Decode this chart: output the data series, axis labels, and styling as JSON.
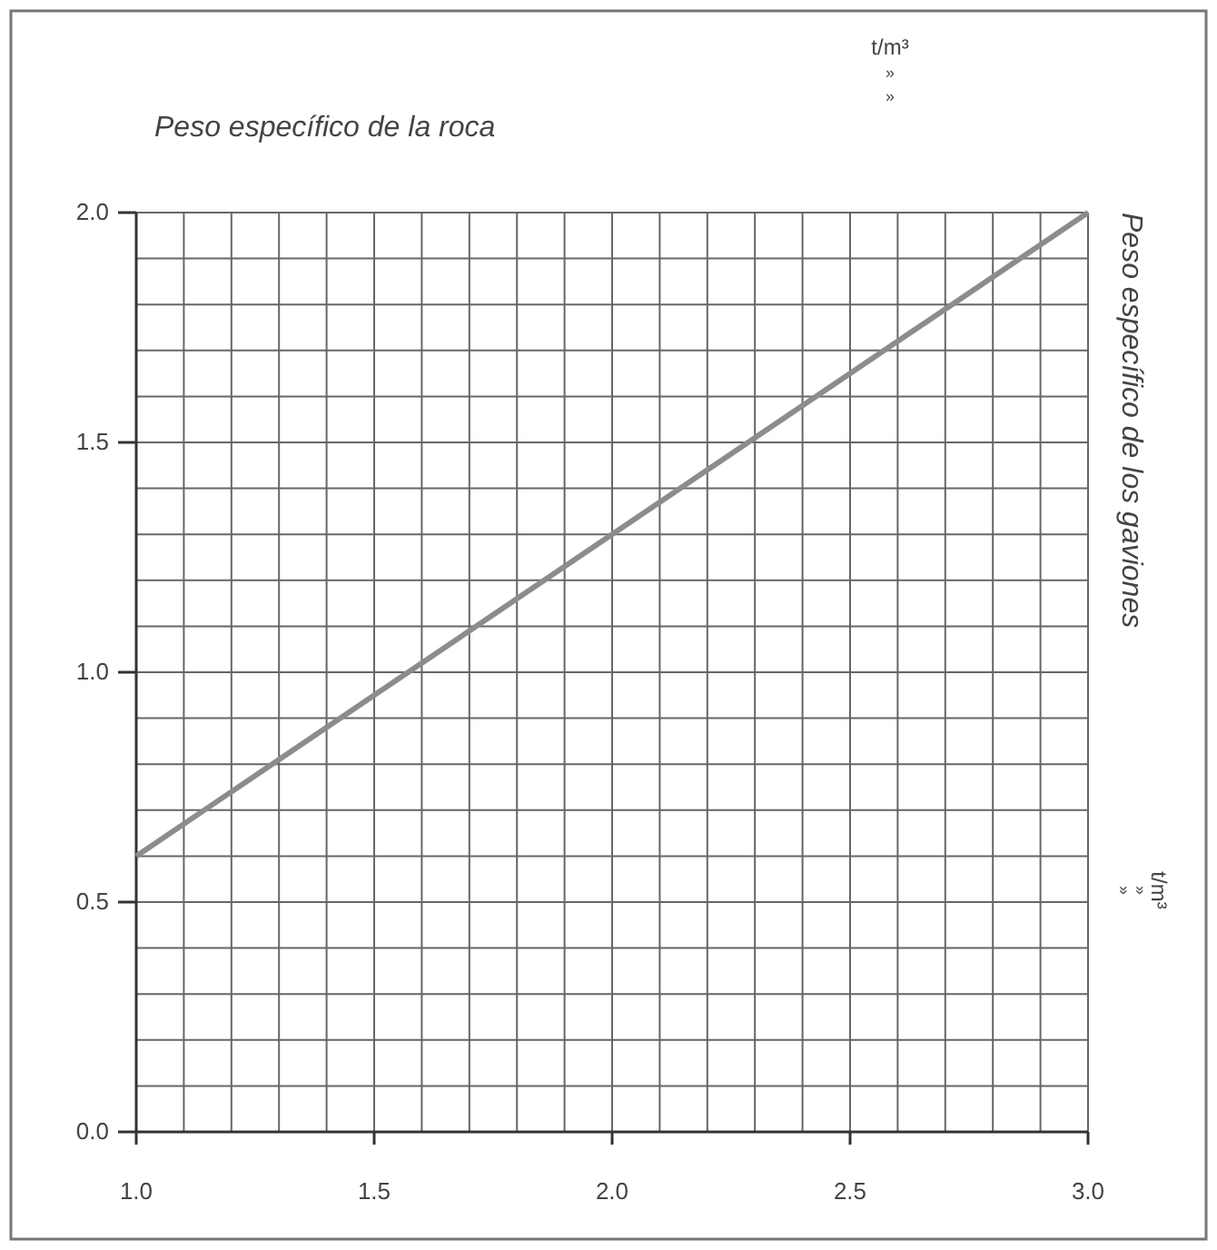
{
  "chart_data": {
    "type": "line",
    "title": "Peso específico de la roca",
    "ylabel": "Peso específico de los gaviones",
    "annotations": [
      "t/m³",
      "»",
      "»",
      "t/m³",
      "»",
      "»"
    ],
    "x": [
      1.0,
      3.0
    ],
    "series": [
      {
        "color": "#8c8c8c",
        "values": [
          0.6,
          2.0
        ]
      }
    ],
    "xlim": [
      1.0,
      3.0
    ],
    "ylim": [
      0.0,
      2.0
    ],
    "xticks": [
      {
        "value": 1.0,
        "label": "1.0"
      },
      {
        "value": 1.1,
        "label": null
      },
      {
        "value": 1.2,
        "label": null
      },
      {
        "value": 1.3,
        "label": null
      },
      {
        "value": 1.4,
        "label": null
      },
      {
        "value": 1.5,
        "label": "1.5"
      },
      {
        "value": 1.6,
        "label": null
      },
      {
        "value": 1.7,
        "label": null
      },
      {
        "value": 1.8,
        "label": null
      },
      {
        "value": 1.9,
        "label": null
      },
      {
        "value": 2.0,
        "label": "2.0"
      },
      {
        "value": 2.1,
        "label": null
      },
      {
        "value": 2.2,
        "label": null
      },
      {
        "value": 2.3,
        "label": null
      },
      {
        "value": 2.4,
        "label": null
      },
      {
        "value": 2.5,
        "label": "2.5"
      },
      {
        "value": 2.6,
        "label": null
      },
      {
        "value": 2.7,
        "label": null
      },
      {
        "value": 2.8,
        "label": null
      },
      {
        "value": 2.9,
        "label": null
      },
      {
        "value": 3.0,
        "label": "3.0"
      }
    ],
    "yticks": [
      {
        "value": 0.0,
        "label": "0.0"
      },
      {
        "value": 0.1,
        "label": null
      },
      {
        "value": 0.2,
        "label": null
      },
      {
        "value": 0.3,
        "label": null
      },
      {
        "value": 0.4,
        "label": null
      },
      {
        "value": 0.5,
        "label": "0.5"
      },
      {
        "value": 0.6,
        "label": null
      },
      {
        "value": 0.7,
        "label": null
      },
      {
        "value": 0.8,
        "label": null
      },
      {
        "value": 0.9,
        "label": null
      },
      {
        "value": 1.0,
        "label": "1.0"
      },
      {
        "value": 1.1,
        "label": null
      },
      {
        "value": 1.2,
        "label": null
      },
      {
        "value": 1.3,
        "label": null
      },
      {
        "value": 1.4,
        "label": null
      },
      {
        "value": 1.5,
        "label": "1.5"
      },
      {
        "value": 1.6,
        "label": null
      },
      {
        "value": 1.7,
        "label": null
      },
      {
        "value": 1.8,
        "label": null
      },
      {
        "value": 1.9,
        "label": null
      },
      {
        "value": 2.0,
        "label": "2.0"
      }
    ],
    "grid": true,
    "marker": "none",
    "line_style": "solid"
  }
}
